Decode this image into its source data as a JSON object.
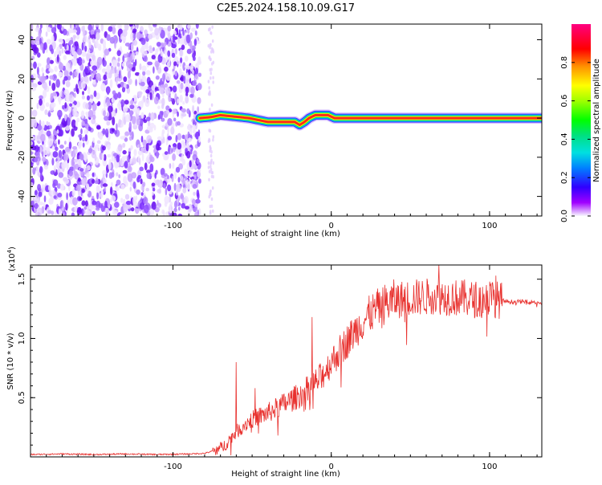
{
  "title": "C2E5.2024.158.10.09.G17",
  "chart_data": [
    {
      "type": "heatmap",
      "xlabel": "Height of straight line (km)",
      "ylabel": "Frequency (Hz)",
      "xlim": [
        -190,
        133
      ],
      "ylim": [
        -50,
        48
      ],
      "xticks": [
        {
          "value": -100,
          "label": "-100"
        },
        {
          "value": 0,
          "label": "0"
        },
        {
          "value": 100,
          "label": "100"
        }
      ],
      "yticks": [
        {
          "value": -40,
          "label": "-40"
        },
        {
          "value": -20,
          "label": "-20"
        },
        {
          "value": 0,
          "label": "0"
        },
        {
          "value": 20,
          "label": "20"
        },
        {
          "value": 40,
          "label": "40"
        }
      ],
      "noise_region_x": [
        -190,
        -83
      ],
      "tone_trace": {
        "x": [
          -83,
          -76,
          -70,
          -64,
          -58,
          -52,
          -46,
          -40,
          -34,
          -28,
          -23,
          -20,
          -17,
          -14,
          -10,
          -6,
          -2,
          2,
          6,
          10,
          20,
          40,
          60,
          80,
          100,
          120,
          133
        ],
        "y": [
          0,
          0.5,
          1.5,
          1.0,
          0.5,
          0,
          -1.0,
          -2.0,
          -2.0,
          -2.0,
          -2.0,
          -3.5,
          -2.0,
          0,
          1.5,
          1.5,
          1.5,
          0,
          0,
          0,
          0,
          0,
          0,
          0,
          0,
          0,
          0
        ]
      },
      "colorbar": {
        "label": "Normalized spectral amplitude",
        "range": [
          0,
          1
        ],
        "ticks": [
          "0.0",
          "0.2",
          "0.4",
          "0.6",
          "0.8"
        ],
        "tick_values": [
          0.0,
          0.2,
          0.4,
          0.6,
          0.8
        ]
      }
    },
    {
      "type": "line",
      "xlabel": "Height of straight line (km)",
      "ylabel": "SNR (10 * v/v)",
      "scale_label": "(x10",
      "scale_exponent": "4",
      "scale_suffix": ")",
      "xlim": [
        -190,
        133
      ],
      "ylim": [
        0,
        16200
      ],
      "xticks": [
        {
          "value": -100,
          "label": "-100"
        },
        {
          "value": 0,
          "label": "0"
        },
        {
          "value": 100,
          "label": "100"
        }
      ],
      "yticks": [
        {
          "value": 5000,
          "label": "0.5"
        },
        {
          "value": 10000,
          "label": "1.0"
        },
        {
          "value": 15000,
          "label": "1.5"
        }
      ],
      "series": [
        {
          "color": "#e8312e",
          "x": [
            -190,
            -170,
            -150,
            -130,
            -110,
            -90,
            -80,
            -72,
            -68,
            -64,
            -60,
            -56,
            -52,
            -48,
            -44,
            -40,
            -36,
            -32,
            -28,
            -24,
            -20,
            -16,
            -12,
            -8,
            -4,
            0,
            4,
            8,
            12,
            16,
            20,
            24,
            28,
            32,
            36,
            40,
            44,
            48,
            52,
            56,
            60,
            64,
            68,
            72,
            76,
            80,
            84,
            88,
            92,
            96,
            100,
            104,
            108,
            112,
            116,
            120,
            126,
            133
          ],
          "y": [
            200,
            250,
            200,
            250,
            200,
            250,
            300,
            600,
            900,
            1500,
            2100,
            2600,
            3000,
            3300,
            3500,
            3700,
            4000,
            4300,
            4600,
            4900,
            5200,
            5600,
            6000,
            6500,
            7200,
            8000,
            8700,
            9400,
            10100,
            10800,
            11400,
            12000,
            12400,
            12800,
            13000,
            13200,
            13300,
            13400,
            13400,
            13500,
            13500,
            13600,
            13600,
            13500,
            13500,
            13400,
            13400,
            13300,
            13300,
            13300,
            13400,
            13300,
            13200,
            13100,
            13100,
            13100,
            13100,
            13000
          ]
        }
      ],
      "spikes": [
        {
          "x": -60,
          "y": 8000
        },
        {
          "x": -48,
          "y": 5800
        },
        {
          "x": -12,
          "y": 11800
        },
        {
          "x": 68,
          "y": 16200
        },
        {
          "x": 100,
          "y": 14800
        },
        {
          "x": 104,
          "y": 15300
        }
      ]
    }
  ]
}
